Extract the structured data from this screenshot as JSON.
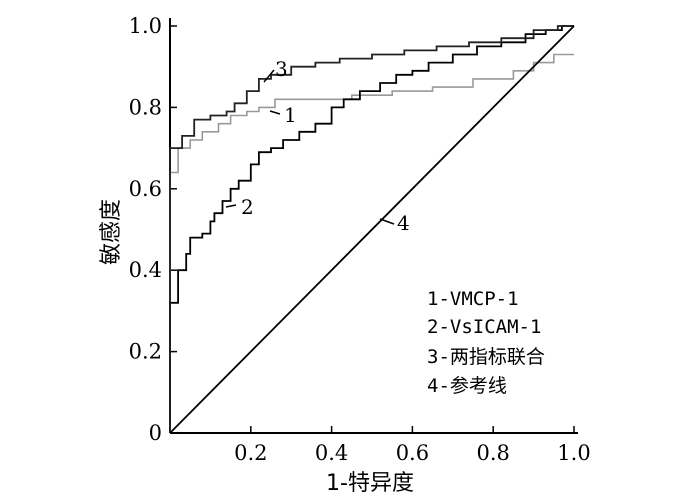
{
  "chart_data": {
    "type": "line",
    "xlabel": "1-特异度",
    "ylabel": "敏感度",
    "xlim": [
      0,
      1.0
    ],
    "ylim": [
      0,
      1.0
    ],
    "x_ticks": [
      "0.2",
      "0.4",
      "0.6",
      "0.8",
      "1.0"
    ],
    "x_tick_values": [
      0.2,
      0.4,
      0.6,
      0.8,
      1.0
    ],
    "y_ticks": [
      "0",
      "0.2",
      "0.4",
      "0.6",
      "0.8",
      "1.0"
    ],
    "y_tick_values": [
      0,
      0.2,
      0.4,
      0.6,
      0.8,
      1.0
    ],
    "grid": false,
    "legend_position": "bottom-right",
    "legend": [
      "1-VMCP-1",
      "2-VsICAM-1",
      "3-两指标联合",
      "4-参考线"
    ],
    "series": [
      {
        "label": "1",
        "color": "#999999",
        "x": [
          0,
          0,
          0.02,
          0.02,
          0.05,
          0.05,
          0.08,
          0.08,
          0.12,
          0.12,
          0.15,
          0.15,
          0.19,
          0.19,
          0.22,
          0.22,
          0.26,
          0.26,
          0.35,
          0.35,
          0.45,
          0.45,
          0.55,
          0.55,
          0.65,
          0.65,
          0.75,
          0.75,
          0.85,
          0.85,
          0.9,
          0.9,
          0.95,
          0.95,
          1.0
        ],
        "y": [
          0,
          0.64,
          0.64,
          0.7,
          0.7,
          0.72,
          0.72,
          0.74,
          0.74,
          0.76,
          0.76,
          0.78,
          0.78,
          0.79,
          0.79,
          0.8,
          0.8,
          0.82,
          0.82,
          0.82,
          0.82,
          0.83,
          0.83,
          0.84,
          0.84,
          0.85,
          0.85,
          0.87,
          0.87,
          0.89,
          0.89,
          0.91,
          0.91,
          0.93,
          0.93
        ]
      },
      {
        "label": "2",
        "color": "#000000",
        "x": [
          0,
          0,
          0.02,
          0.02,
          0.04,
          0.04,
          0.05,
          0.05,
          0.08,
          0.08,
          0.1,
          0.1,
          0.11,
          0.11,
          0.13,
          0.13,
          0.15,
          0.15,
          0.17,
          0.17,
          0.2,
          0.2,
          0.22,
          0.22,
          0.25,
          0.25,
          0.28,
          0.28,
          0.32,
          0.32,
          0.36,
          0.36,
          0.4,
          0.4,
          0.43,
          0.43,
          0.47,
          0.47,
          0.52,
          0.52,
          0.56,
          0.56,
          0.6,
          0.6,
          0.64,
          0.64,
          0.7,
          0.7,
          0.76,
          0.76,
          0.82,
          0.82,
          0.88,
          0.88,
          0.93,
          0.93,
          0.97,
          0.97,
          1.0
        ],
        "y": [
          0,
          0.32,
          0.32,
          0.4,
          0.4,
          0.44,
          0.44,
          0.48,
          0.48,
          0.49,
          0.49,
          0.52,
          0.52,
          0.54,
          0.54,
          0.57,
          0.57,
          0.6,
          0.6,
          0.62,
          0.62,
          0.66,
          0.66,
          0.69,
          0.69,
          0.7,
          0.7,
          0.72,
          0.72,
          0.74,
          0.74,
          0.76,
          0.76,
          0.8,
          0.8,
          0.82,
          0.82,
          0.84,
          0.84,
          0.86,
          0.86,
          0.88,
          0.88,
          0.89,
          0.89,
          0.91,
          0.91,
          0.93,
          0.93,
          0.95,
          0.95,
          0.96,
          0.96,
          0.98,
          0.98,
          0.99,
          0.99,
          1.0,
          1.0
        ]
      },
      {
        "label": "3",
        "color": "#222222",
        "x": [
          0,
          0,
          0.03,
          0.03,
          0.06,
          0.06,
          0.1,
          0.1,
          0.14,
          0.14,
          0.16,
          0.16,
          0.19,
          0.19,
          0.22,
          0.22,
          0.25,
          0.25,
          0.3,
          0.3,
          0.36,
          0.36,
          0.42,
          0.42,
          0.5,
          0.5,
          0.58,
          0.58,
          0.66,
          0.66,
          0.74,
          0.74,
          0.82,
          0.82,
          0.9,
          0.9,
          0.96,
          0.96,
          1.0
        ],
        "y": [
          0,
          0.7,
          0.7,
          0.73,
          0.73,
          0.77,
          0.77,
          0.78,
          0.78,
          0.79,
          0.79,
          0.81,
          0.81,
          0.84,
          0.84,
          0.87,
          0.87,
          0.88,
          0.88,
          0.9,
          0.9,
          0.91,
          0.91,
          0.92,
          0.92,
          0.93,
          0.93,
          0.94,
          0.94,
          0.95,
          0.95,
          0.96,
          0.96,
          0.97,
          0.97,
          0.99,
          0.99,
          1.0,
          1.0
        ]
      },
      {
        "label": "4",
        "color": "#000000",
        "x": [
          0,
          1.0
        ],
        "y": [
          0,
          1.0
        ]
      }
    ]
  }
}
